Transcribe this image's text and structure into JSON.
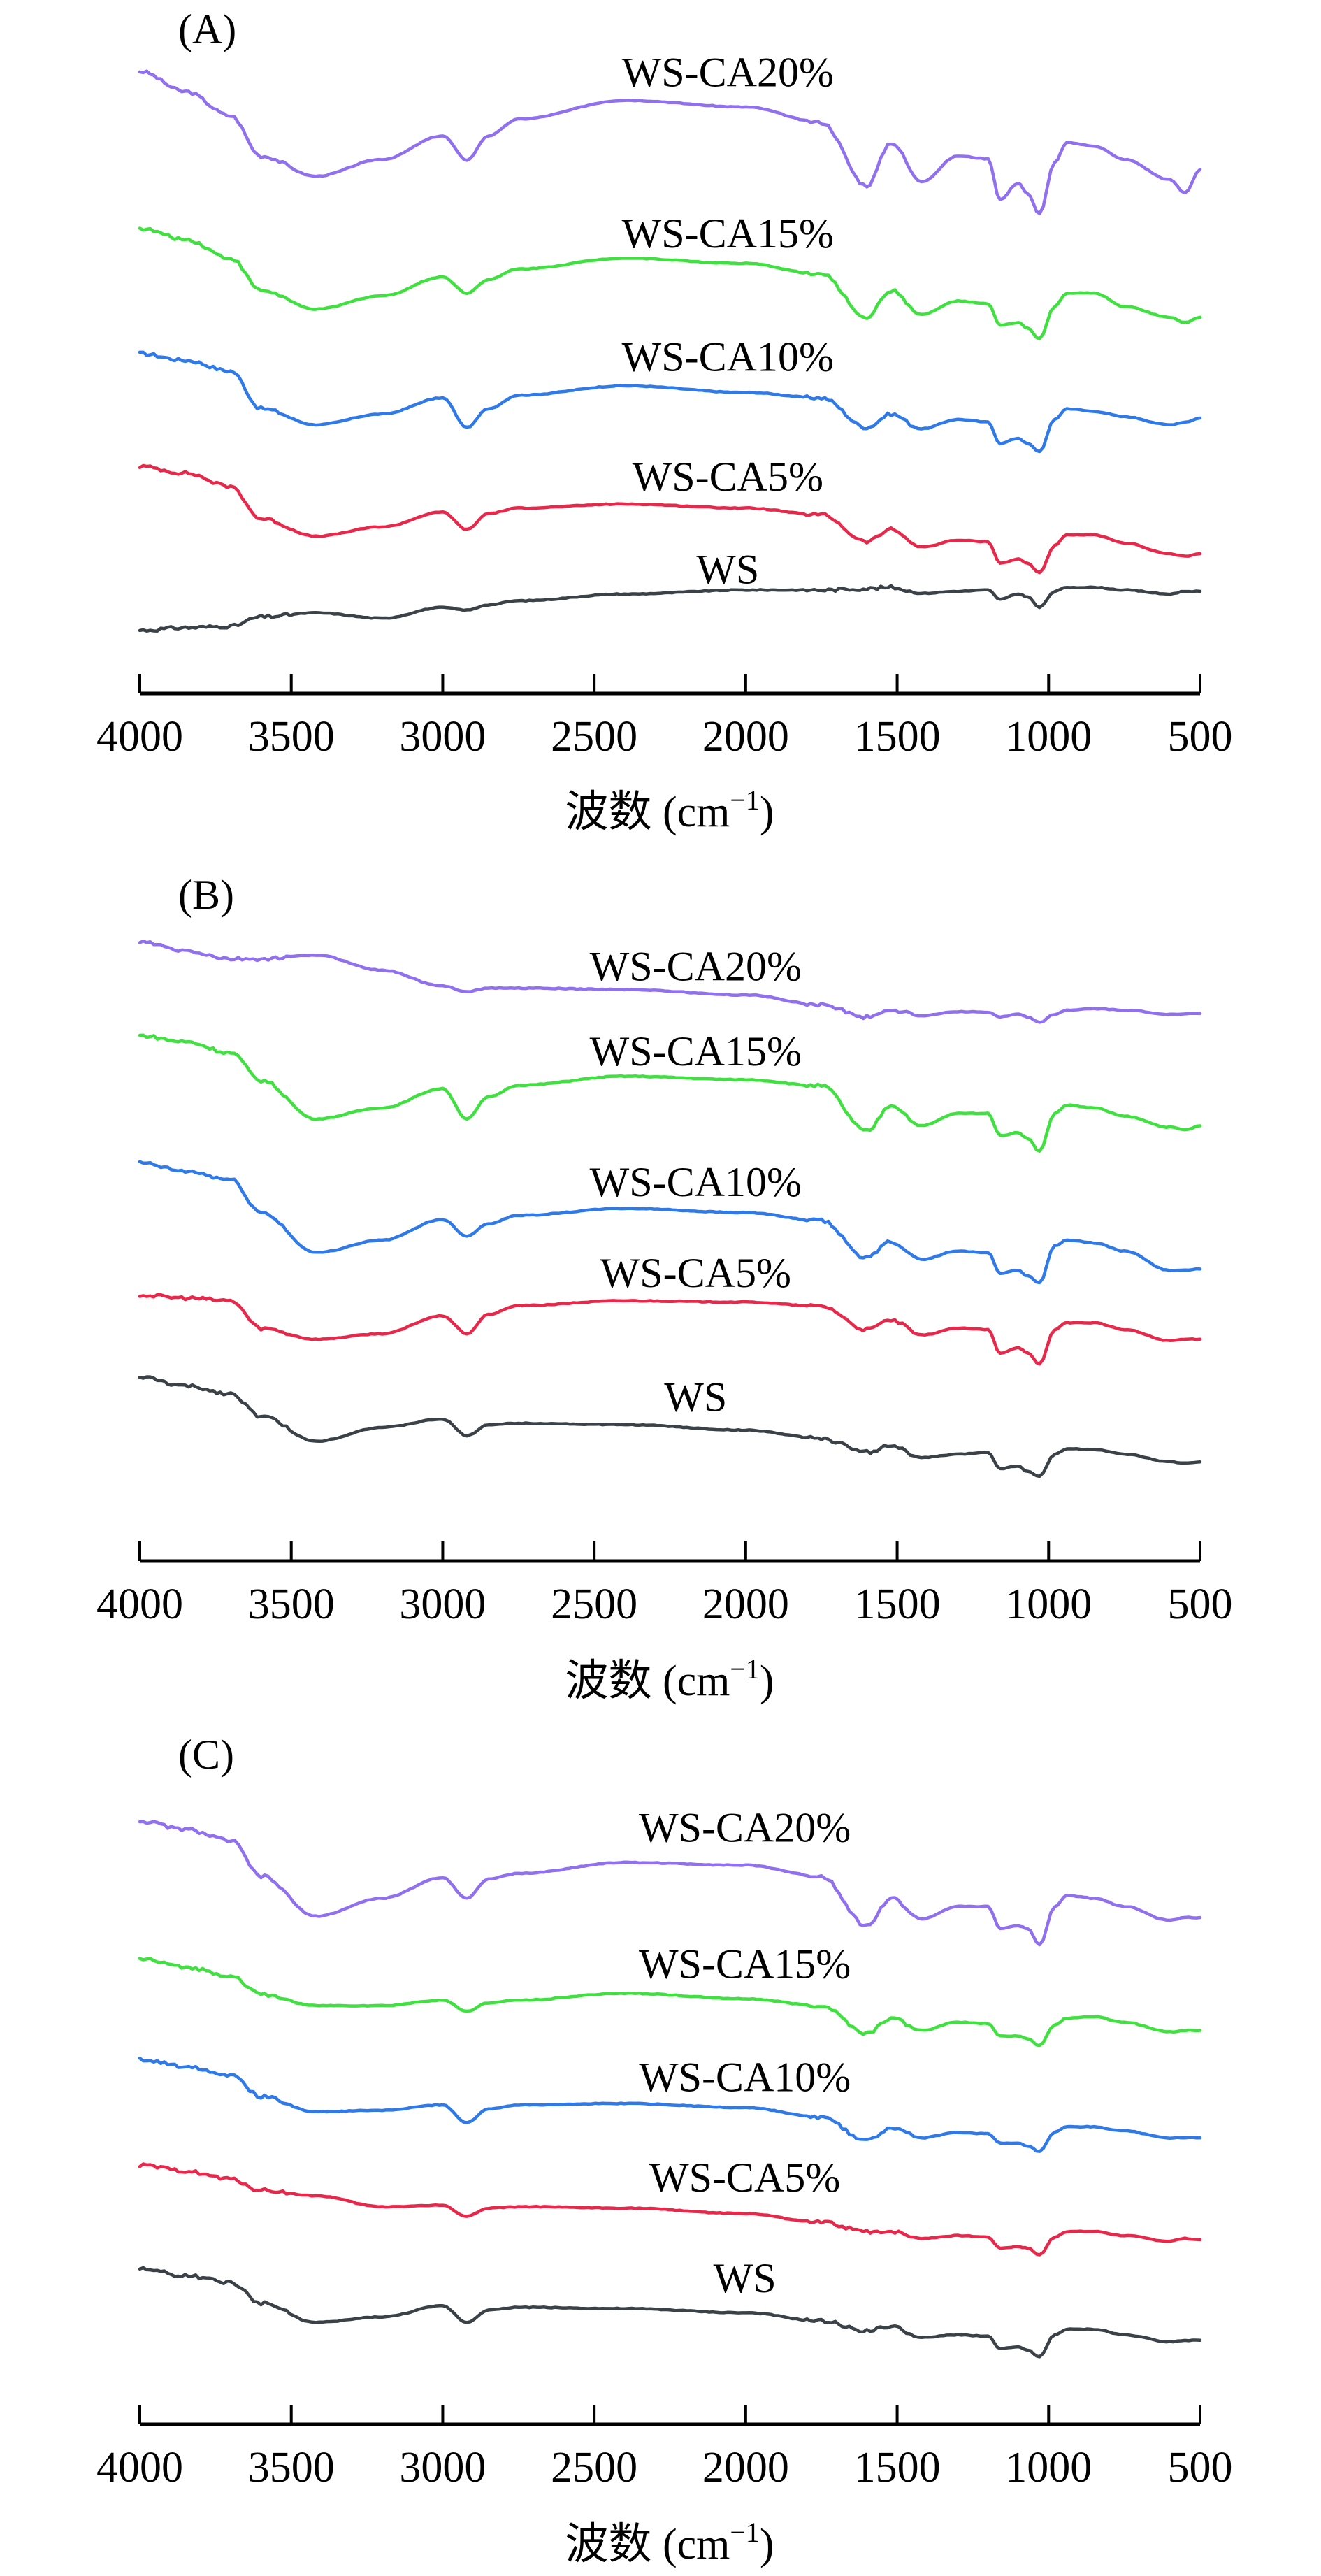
{
  "figure": {
    "series_names": [
      "WS-CA20%",
      "WS-CA15%",
      "WS-CA10%",
      "WS-CA5%",
      "WS"
    ],
    "colors": {
      "WS-CA20%": "#9070ee",
      "WS-CA15%": "#3fe03f",
      "WS-CA10%": "#2f7ae8",
      "WS-CA5%": "#e8284a",
      "WS": "#3a4248"
    }
  },
  "chart_data": [
    {
      "type": "line",
      "panel": "(A)",
      "title": "",
      "xlabel": "波数 (cm⁻¹)",
      "xlabel_main": "波数 (cm",
      "xlabel_sup": "−1",
      "xlabel_close": ")",
      "ylabel": "",
      "xlim": [
        4000,
        500
      ],
      "x_reversed": true,
      "ylim": [
        0,
        100
      ],
      "y_units": "relative transmittance (a.u., curves vertically offset; no y-axis shown)",
      "grid": false,
      "legend": "inline labels above each curve",
      "xticks": [
        "4000",
        "3500",
        "3000",
        "2500",
        "2000",
        "1500",
        "1000",
        "500"
      ],
      "xtick_values": [
        4000,
        3500,
        3000,
        2500,
        2000,
        1500,
        1000,
        500
      ],
      "x": [
        4000,
        3850,
        3700,
        3600,
        3420,
        3200,
        3000,
        2920,
        2850,
        2750,
        2400,
        2000,
        1750,
        1600,
        1520,
        1420,
        1300,
        1200,
        1160,
        1100,
        1070,
        1030,
        980,
        940,
        850,
        750,
        600,
        550,
        500
      ],
      "series": [
        {
          "name": "WS-CA20%",
          "label_at": [
            2059,
            90.4
          ],
          "values": [
            92.6,
            89.6,
            86,
            80,
            77,
            79.5,
            83,
            79.4,
            83,
            85.5,
            88.3,
            87.3,
            85,
            75.6,
            82,
            76.2,
            80,
            79.6,
            73.5,
            76,
            74.4,
            71.4,
            79,
            82,
            81.5,
            79.5,
            76.5,
            74.5,
            78
          ]
        },
        {
          "name": "WS-CA15%",
          "label_at": [
            2059,
            66.4
          ],
          "values": [
            69.2,
            67.6,
            64.8,
            60,
            57.2,
            59.2,
            62,
            59.6,
            61.6,
            63.2,
            64.8,
            64,
            62.4,
            56,
            60,
            56.4,
            58.4,
            58,
            54.8,
            55.2,
            54.4,
            52.8,
            57.6,
            59.6,
            59.6,
            57.6,
            56,
            55.2,
            56
          ]
        },
        {
          "name": "WS-CA10%",
          "label_at": [
            2059,
            48
          ],
          "values": [
            50.6,
            49.6,
            48,
            42.4,
            40,
            41.6,
            44,
            39.6,
            42.4,
            44.4,
            45.8,
            44.8,
            44,
            39.6,
            41.6,
            39.4,
            40.8,
            40.4,
            37.2,
            38,
            37.2,
            36,
            40.8,
            42.4,
            42,
            41.2,
            40,
            40.4,
            41
          ]
        },
        {
          "name": "WS-CA5%",
          "label_at": [
            2059,
            30.2
          ],
          "values": [
            33.8,
            32.8,
            30.8,
            26,
            23.4,
            24.8,
            27,
            24.4,
            26.8,
            27.6,
            28.2,
            27.6,
            26.6,
            22.6,
            24.4,
            21.8,
            22.8,
            22.6,
            19.4,
            20,
            19.4,
            18,
            22,
            23.6,
            23.6,
            22.4,
            20.8,
            20.4,
            20.8
          ]
        },
        {
          "name": "WS",
          "label_at": [
            2059,
            16.4
          ],
          "values": [
            9.4,
            9.8,
            10,
            11.4,
            12,
            11.2,
            12.8,
            12.4,
            13.2,
            13.8,
            14.8,
            15.4,
            15.4,
            15.6,
            15.8,
            14.9,
            15.2,
            15.4,
            14,
            14.8,
            14.4,
            12.8,
            15.2,
            15.8,
            15.8,
            15.4,
            14.8,
            15.2,
            15.2
          ]
        }
      ]
    },
    {
      "type": "line",
      "panel": "(B)",
      "title": "",
      "xlabel": "波数 (cm⁻¹)",
      "xlabel_main": "波数 (cm",
      "xlabel_sup": "−1",
      "xlabel_close": ")",
      "ylabel": "",
      "xlim": [
        4000,
        500
      ],
      "x_reversed": true,
      "ylim": [
        0,
        100
      ],
      "y_units": "relative transmittance (a.u., curves vertically offset; no y-axis shown)",
      "grid": false,
      "legend": "inline labels above each curve",
      "xticks": [
        "4000",
        "3500",
        "3000",
        "2500",
        "2000",
        "1500",
        "1000",
        "500"
      ],
      "xtick_values": [
        4000,
        3500,
        3000,
        2500,
        2000,
        1500,
        1000,
        500
      ],
      "x": [
        4000,
        3850,
        3700,
        3600,
        3420,
        3200,
        3000,
        2920,
        2850,
        2750,
        2400,
        2000,
        1750,
        1600,
        1520,
        1420,
        1300,
        1200,
        1160,
        1100,
        1070,
        1030,
        980,
        940,
        850,
        750,
        600,
        550,
        500
      ],
      "series": [
        {
          "name": "WS-CA20%",
          "label_at": [
            2165,
            84.3
          ],
          "values": [
            89.9,
            88.6,
            87.4,
            87.4,
            88,
            85.8,
            83.5,
            82.7,
            83.2,
            83.2,
            83,
            82.2,
            80.8,
            79,
            80,
            79.2,
            79.8,
            79.7,
            79,
            79.4,
            79,
            78.2,
            79.4,
            80,
            80.2,
            80,
            79.4,
            79.5,
            79.5
          ]
        },
        {
          "name": "WS-CA15%",
          "label_at": [
            2165,
            72
          ],
          "values": [
            76.3,
            75.4,
            73.8,
            69.8,
            64.2,
            65.8,
            68.6,
            64.2,
            67.4,
            69.1,
            70.4,
            69.9,
            69,
            62.4,
            66.2,
            63.2,
            65,
            65,
            61.8,
            62.2,
            61.4,
            59.5,
            65,
            66.2,
            65.8,
            64.6,
            63,
            62.6,
            63.2
          ]
        },
        {
          "name": "WS-CA10%",
          "label_at": [
            2165,
            53
          ],
          "values": [
            57.8,
            56.6,
            55.4,
            50.6,
            44.8,
            46.6,
            49.6,
            47.2,
            49,
            50.2,
            51.2,
            50.6,
            49.4,
            44,
            46.4,
            43.8,
            45,
            44.8,
            41.8,
            42.2,
            41.4,
            40.4,
            45.8,
            46.6,
            46.2,
            45,
            42.2,
            42.2,
            42.4
          ]
        },
        {
          "name": "WS-CA5%",
          "label_at": [
            2165,
            39.8
          ],
          "values": [
            38.6,
            38.2,
            37.8,
            33.8,
            32.2,
            33,
            35.6,
            33,
            35.8,
            37.1,
            37.8,
            37.6,
            37,
            33.6,
            35,
            32.8,
            33.8,
            33.6,
            30.2,
            31,
            30.2,
            28.6,
            33.6,
            34.6,
            34.6,
            33.6,
            32,
            32.2,
            32.2
          ]
        },
        {
          "name": "WS",
          "label_at": [
            2165,
            21.8
          ],
          "values": [
            26.7,
            25.4,
            24.3,
            21,
            17.4,
            19.4,
            20.6,
            18.2,
            19.8,
            20,
            19.8,
            19,
            17.8,
            15.8,
            16.8,
            15,
            15.5,
            15.8,
            13.4,
            13.8,
            13,
            12.3,
            15.5,
            16.3,
            16.2,
            15.5,
            14.4,
            14.2,
            14.4
          ]
        }
      ]
    },
    {
      "type": "line",
      "panel": "(C)",
      "title": "",
      "xlabel": "波数 (cm⁻¹)",
      "xlabel_main": "波数 (cm",
      "xlabel_sup": "−1",
      "xlabel_close": ")",
      "ylabel": "",
      "xlim": [
        4000,
        500
      ],
      "x_reversed": true,
      "ylim": [
        0,
        100
      ],
      "y_units": "relative transmittance (a.u., curves vertically offset; no y-axis shown)",
      "grid": false,
      "legend": "inline labels above each curve",
      "xticks": [
        "4000",
        "3500",
        "3000",
        "2500",
        "2000",
        "1500",
        "1000",
        "500"
      ],
      "xtick_values": [
        4000,
        3500,
        3000,
        2500,
        2000,
        1500,
        1000,
        500
      ],
      "x": [
        4000,
        3850,
        3700,
        3600,
        3420,
        3200,
        3000,
        2920,
        2850,
        2750,
        2400,
        2000,
        1750,
        1600,
        1520,
        1420,
        1300,
        1200,
        1160,
        1100,
        1070,
        1030,
        980,
        940,
        850,
        750,
        600,
        550,
        500
      ],
      "series": [
        {
          "name": "WS-CA20%",
          "label_at": [
            2003,
            84.6
          ],
          "values": [
            87.6,
            86.4,
            84.8,
            79.6,
            73.8,
            76.4,
            79.4,
            76.4,
            79.2,
            80,
            81.6,
            81.2,
            79.6,
            72.4,
            76.4,
            73.4,
            75.2,
            75.2,
            72,
            72.4,
            72,
            69.6,
            75.2,
            76.8,
            76.4,
            75.2,
            73.2,
            73.6,
            73.6
          ]
        },
        {
          "name": "WS-CA15%",
          "label_at": [
            2003,
            64.8
          ],
          "values": [
            67.6,
            66.4,
            65.2,
            62.4,
            60.8,
            60.8,
            61.6,
            60,
            61.2,
            61.6,
            62.6,
            61.8,
            60.8,
            56.8,
            59,
            57.2,
            58.4,
            58.2,
            56.4,
            56.4,
            56,
            55,
            58,
            59,
            59.2,
            58.4,
            57,
            57.2,
            57.2
          ]
        },
        {
          "name": "WS-CA10%",
          "label_at": [
            2003,
            48.4
          ],
          "values": [
            53,
            52,
            50.8,
            47.6,
            45.4,
            45.6,
            46.4,
            43.8,
            45.8,
            46.4,
            46.6,
            46,
            44.6,
            41.2,
            43,
            41.6,
            42.4,
            42.2,
            40.8,
            40.8,
            40.4,
            39.6,
            42.4,
            43.2,
            43.2,
            42.6,
            41.6,
            41.6,
            41.6
          ]
        },
        {
          "name": "WS-CA5%",
          "label_at": [
            2003,
            33.8
          ],
          "values": [
            37.6,
            36.8,
            35.6,
            34,
            33.2,
            31.6,
            31.8,
            30.2,
            31.4,
            31.6,
            31.4,
            30.6,
            29.3,
            28,
            28,
            27,
            27.4,
            27.2,
            25.6,
            25.8,
            25.6,
            24.6,
            27.2,
            28,
            28,
            27.4,
            26.6,
            27,
            26.8
          ]
        },
        {
          "name": "WS",
          "label_at": [
            2003,
            19.2
          ],
          "values": [
            22.6,
            21.6,
            20.6,
            17.6,
            14.8,
            15.6,
            17.2,
            14.8,
            16.6,
            17,
            16.8,
            16.2,
            15,
            13.6,
            14.2,
            12.6,
            13,
            12.8,
            11,
            11.2,
            10.8,
            9.8,
            13,
            13.8,
            13.8,
            13,
            12,
            12.2,
            12.2
          ]
        }
      ]
    }
  ]
}
